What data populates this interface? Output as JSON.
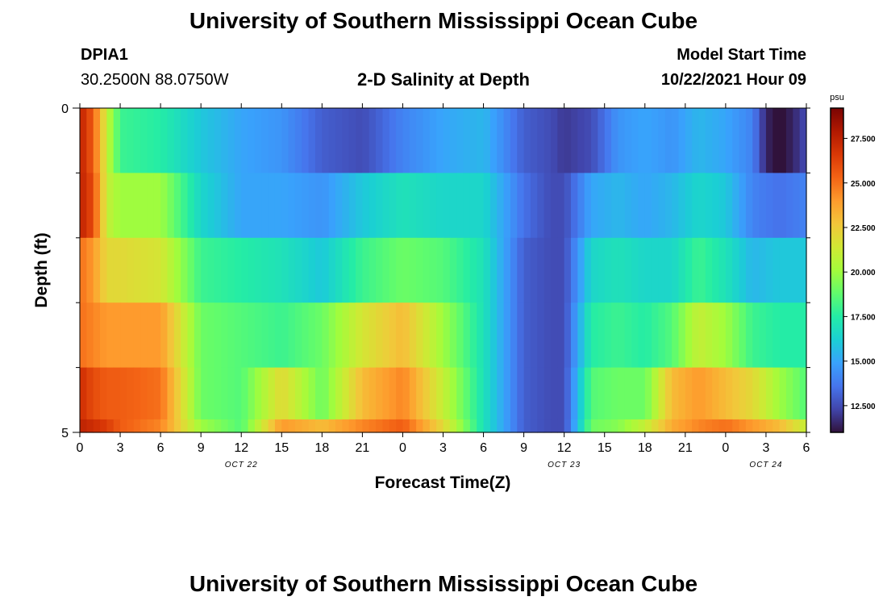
{
  "header": {
    "title": "University of Southern Mississippi Ocean Cube",
    "station": "DPIA1",
    "coords": "30.2500N  88.0750W",
    "chart_title": "2-D Salinity at Depth",
    "start_label": "Model Start Time",
    "start_value": "10/22/2021 Hour 09"
  },
  "footer": {
    "title": "University of Southern Mississippi Ocean Cube"
  },
  "colors": {
    "colormap": [
      "#30123b",
      "#4145ab",
      "#4675ed",
      "#39a2fc",
      "#1bcfd4",
      "#24eca6",
      "#61fc6c",
      "#a4fc3b",
      "#d1e834",
      "#f3c63a",
      "#fe9b2d",
      "#f36315",
      "#d93806",
      "#b11901",
      "#7a0403"
    ]
  },
  "chart_data": {
    "type": "heatmap",
    "xlabel": "Forecast Time(Z)",
    "ylabel": "Depth (ft)",
    "x_hours_start": 0,
    "x_hours_end": 54,
    "xticks": [
      "0",
      "3",
      "6",
      "9",
      "12",
      "15",
      "18",
      "21",
      "0",
      "3",
      "6",
      "9",
      "12",
      "15",
      "18",
      "21",
      "0",
      "3",
      "6"
    ],
    "date_labels": [
      {
        "label": "OCT 22",
        "hour": 12
      },
      {
        "label": "OCT 23",
        "hour": 36
      },
      {
        "label": "OCT 24",
        "hour": 51
      }
    ],
    "y_range": [
      0,
      5
    ],
    "yticks": [
      "0",
      "5"
    ],
    "colorbar": {
      "unit": "psu",
      "range": [
        11.0,
        29.2
      ],
      "ticks": [
        "27.500",
        "25.000",
        "22.500",
        "20.000",
        "17.500",
        "15.000",
        "12.500"
      ],
      "tick_values": [
        27.5,
        25.0,
        22.5,
        20.0,
        17.5,
        15.0,
        12.5
      ]
    },
    "layers": [
      {
        "depth_range": [
          0,
          1
        ],
        "x": [
          0,
          1,
          2,
          3,
          6,
          9,
          12,
          15,
          18,
          21,
          24,
          27,
          30,
          33,
          35,
          36,
          38,
          40,
          42,
          44,
          46,
          48,
          50,
          51,
          52,
          53,
          54
        ],
        "values": [
          27.5,
          25.5,
          21,
          18,
          17.5,
          16,
          15,
          14.5,
          13,
          12.5,
          14,
          15,
          15.5,
          13,
          12.5,
          12,
          12.5,
          14.5,
          15,
          14.5,
          15.5,
          15,
          14,
          11.5,
          10.8,
          11.5,
          12.5
        ]
      },
      {
        "depth_range": [
          1,
          2
        ],
        "x": [
          0,
          1,
          2,
          3,
          6,
          9,
          12,
          15,
          18,
          21,
          24,
          27,
          30,
          33,
          35,
          36,
          38,
          40,
          42,
          44,
          46,
          48,
          50,
          52,
          54
        ],
        "values": [
          27.5,
          26,
          21,
          20,
          20,
          16.5,
          15,
          15,
          14.5,
          16,
          17,
          16.5,
          16.5,
          13.5,
          12.5,
          12.5,
          15,
          15.5,
          15,
          15.5,
          16.5,
          16,
          14,
          13.5,
          14
        ]
      },
      {
        "depth_range": [
          2,
          3
        ],
        "x": [
          0,
          1,
          2,
          3,
          6,
          9,
          12,
          15,
          18,
          21,
          24,
          27,
          30,
          33,
          35,
          36,
          38,
          40,
          42,
          44,
          46,
          48,
          50,
          52,
          54
        ],
        "values": [
          25,
          24,
          22,
          22,
          21.5,
          18,
          17.5,
          17,
          16,
          18,
          19,
          18.5,
          17,
          13,
          12.5,
          12.5,
          16.5,
          17,
          16.5,
          16.5,
          18,
          17,
          15.5,
          16,
          16
        ]
      },
      {
        "depth_range": [
          3,
          4
        ],
        "x": [
          0,
          1,
          2,
          3,
          6,
          9,
          12,
          15,
          18,
          21,
          24,
          27,
          30,
          33,
          35,
          36,
          38,
          40,
          42,
          44,
          46,
          48,
          50,
          52,
          54
        ],
        "values": [
          25,
          24.5,
          24,
          24,
          24,
          19,
          18.5,
          18,
          19,
          21.5,
          23,
          20,
          17,
          13,
          12.5,
          12.5,
          17.5,
          18,
          17.5,
          18.5,
          21,
          20,
          18,
          17.5,
          17.5
        ]
      },
      {
        "depth_range": [
          4,
          4.8
        ],
        "x": [
          0,
          1,
          2,
          3,
          6,
          9,
          12,
          15,
          18,
          21,
          24,
          27,
          30,
          33,
          35,
          36,
          38,
          40,
          42,
          44,
          46,
          48,
          50,
          52,
          54
        ],
        "values": [
          27,
          26,
          25.5,
          25.5,
          25,
          19,
          18.5,
          22,
          19,
          23,
          24.5,
          21,
          17,
          13,
          12.5,
          12.5,
          18.5,
          19,
          19,
          23,
          24,
          23,
          22,
          20,
          18.5
        ]
      },
      {
        "depth_range": [
          4.8,
          5
        ],
        "x": [
          0,
          1,
          2,
          3,
          6,
          9,
          12,
          15,
          18,
          21,
          24,
          27,
          30,
          33,
          35,
          36,
          38,
          40,
          42,
          44,
          46,
          48,
          50,
          52,
          54
        ],
        "values": [
          27.5,
          27,
          26.5,
          25.5,
          24.5,
          20,
          18.5,
          24,
          23,
          24.5,
          25.5,
          22,
          17,
          13,
          12.5,
          12.5,
          19,
          19.5,
          21,
          23.5,
          24.5,
          25,
          24,
          23,
          21
        ]
      }
    ]
  }
}
